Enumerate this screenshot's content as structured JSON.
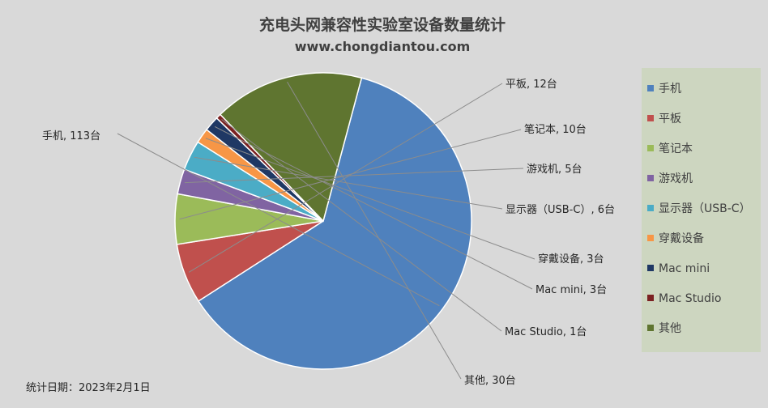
{
  "title": "充电头网兼容性实验室设备数量统计",
  "subtitle": "www.chongdiantou.com",
  "footnote": "统计日期：2023年2月1日",
  "chart_data": {
    "type": "pie",
    "legend_position": "right",
    "unit": "台",
    "slices": [
      {
        "label": "手机",
        "value": 113,
        "color": "#4f81bd",
        "data_label": "手机, 113台"
      },
      {
        "label": "平板",
        "value": 12,
        "color": "#c0504d",
        "data_label": "平板, 12台"
      },
      {
        "label": "笔记本",
        "value": 10,
        "color": "#9bbb59",
        "data_label": "笔记本, 10台"
      },
      {
        "label": "游戏机",
        "value": 5,
        "color": "#8064a2",
        "data_label": "游戏机, 5台"
      },
      {
        "label": "显示器（USB-C）",
        "value": 6,
        "color": "#4bacc6",
        "data_label": "显示器（USB-C）, 6台"
      },
      {
        "label": "穿戴设备",
        "value": 3,
        "color": "#f79646",
        "data_label": "穿戴设备, 3台"
      },
      {
        "label": "Mac mini",
        "value": 3,
        "color": "#1f3864",
        "data_label": "Mac mini, 3台"
      },
      {
        "label": "Mac Studio",
        "value": 1,
        "color": "#7b2121",
        "data_label": "Mac Studio, 1台"
      },
      {
        "label": "其他",
        "value": 30,
        "color": "#5f7530",
        "data_label": "其他, 30台"
      }
    ]
  }
}
